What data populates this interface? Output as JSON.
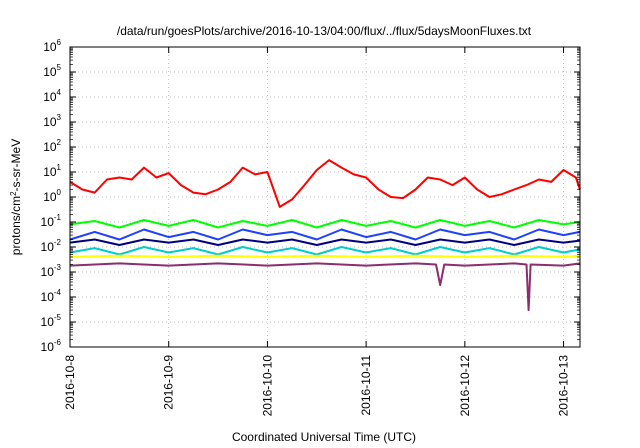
{
  "chart_data": {
    "type": "line",
    "title": "/data/run/goesPlots/archive/2016-10-13/04:00/flux/../flux/5daysMoonFluxes.txt",
    "xlabel": "Coordinated Universal Time (UTC)",
    "ylabel": {
      "base": "protons/cm",
      "sup": "2",
      "rest": "-s-sr-MeV"
    },
    "x_scale": "time",
    "y_scale": "log",
    "xlim": [
      "2016-10-08T00:00",
      "2016-10-13T04:00"
    ],
    "ylim": [
      1e-06,
      1000000.0
    ],
    "grid": true,
    "legend": "none",
    "x_ticks": [
      "2016-10-8",
      "2016-10-9",
      "2016-10-10",
      "2016-10-11",
      "2016-10-12",
      "2016-10-13"
    ],
    "y_ticks": [
      {
        "base": "10",
        "exp": "-6"
      },
      {
        "base": "10",
        "exp": "-5"
      },
      {
        "base": "10",
        "exp": "-4"
      },
      {
        "base": "10",
        "exp": "-3"
      },
      {
        "base": "10",
        "exp": "-2"
      },
      {
        "base": "10",
        "exp": "-1"
      },
      {
        "base": "10",
        "exp": "0"
      },
      {
        "base": "10",
        "exp": "1"
      },
      {
        "base": "10",
        "exp": "2"
      },
      {
        "base": "10",
        "exp": "3"
      },
      {
        "base": "10",
        "exp": "4"
      },
      {
        "base": "10",
        "exp": "5"
      },
      {
        "base": "10",
        "exp": "6"
      }
    ],
    "series": [
      {
        "color": "#ff0000",
        "x": [
          "2016-10-08T00:00",
          "2016-10-08T03:00",
          "2016-10-08T06:00",
          "2016-10-08T09:00",
          "2016-10-08T12:00",
          "2016-10-08T15:00",
          "2016-10-08T18:00",
          "2016-10-08T21:00",
          "2016-10-09T00:00",
          "2016-10-09T03:00",
          "2016-10-09T06:00",
          "2016-10-09T09:00",
          "2016-10-09T12:00",
          "2016-10-09T15:00",
          "2016-10-09T18:00",
          "2016-10-09T21:00",
          "2016-10-10T00:00",
          "2016-10-10T03:00",
          "2016-10-10T06:00",
          "2016-10-10T09:00",
          "2016-10-10T12:00",
          "2016-10-10T15:00",
          "2016-10-10T18:00",
          "2016-10-10T21:00",
          "2016-10-11T00:00",
          "2016-10-11T03:00",
          "2016-10-11T06:00",
          "2016-10-11T09:00",
          "2016-10-11T12:00",
          "2016-10-11T15:00",
          "2016-10-11T18:00",
          "2016-10-11T21:00",
          "2016-10-12T00:00",
          "2016-10-12T03:00",
          "2016-10-12T06:00",
          "2016-10-12T09:00",
          "2016-10-12T12:00",
          "2016-10-12T15:00",
          "2016-10-12T18:00",
          "2016-10-12T21:00",
          "2016-10-13T00:00",
          "2016-10-13T03:00",
          "2016-10-13T04:00"
        ],
        "y": [
          4,
          2,
          1.5,
          5,
          6,
          5,
          15,
          6,
          9,
          3,
          1.5,
          1.3,
          2,
          4,
          15,
          8,
          10,
          0.4,
          0.8,
          3,
          12,
          30,
          15,
          8,
          6,
          2,
          1,
          0.9,
          2,
          6,
          5,
          3,
          6,
          2,
          1,
          1.3,
          2,
          3,
          5,
          4,
          12,
          6,
          2
        ]
      },
      {
        "color": "#00ff00",
        "x": [
          "2016-10-08T00:00",
          "2016-10-08T06:00",
          "2016-10-08T12:00",
          "2016-10-08T18:00",
          "2016-10-09T00:00",
          "2016-10-09T06:00",
          "2016-10-09T12:00",
          "2016-10-09T18:00",
          "2016-10-10T00:00",
          "2016-10-10T06:00",
          "2016-10-10T12:00",
          "2016-10-10T18:00",
          "2016-10-11T00:00",
          "2016-10-11T06:00",
          "2016-10-11T12:00",
          "2016-10-11T18:00",
          "2016-10-12T00:00",
          "2016-10-12T06:00",
          "2016-10-12T12:00",
          "2016-10-12T18:00",
          "2016-10-13T00:00",
          "2016-10-13T04:00"
        ],
        "y": [
          0.08,
          0.11,
          0.06,
          0.12,
          0.07,
          0.12,
          0.06,
          0.11,
          0.07,
          0.12,
          0.06,
          0.12,
          0.07,
          0.11,
          0.06,
          0.12,
          0.07,
          0.11,
          0.06,
          0.12,
          0.08,
          0.1
        ]
      },
      {
        "color": "#00cccc",
        "x": [
          "2016-10-08T00:00",
          "2016-10-08T06:00",
          "2016-10-08T12:00",
          "2016-10-08T18:00",
          "2016-10-09T00:00",
          "2016-10-09T06:00",
          "2016-10-09T12:00",
          "2016-10-09T18:00",
          "2016-10-10T00:00",
          "2016-10-10T06:00",
          "2016-10-10T12:00",
          "2016-10-10T18:00",
          "2016-10-11T00:00",
          "2016-10-11T06:00",
          "2016-10-11T12:00",
          "2016-10-11T18:00",
          "2016-10-12T00:00",
          "2016-10-12T06:00",
          "2016-10-12T12:00",
          "2016-10-12T18:00",
          "2016-10-13T00:00",
          "2016-10-13T04:00"
        ],
        "y": [
          0.006,
          0.009,
          0.005,
          0.01,
          0.006,
          0.009,
          0.005,
          0.01,
          0.006,
          0.009,
          0.005,
          0.01,
          0.006,
          0.009,
          0.005,
          0.01,
          0.006,
          0.009,
          0.005,
          0.01,
          0.006,
          0.008
        ]
      },
      {
        "color": "#2040ff",
        "x": [
          "2016-10-08T00:00",
          "2016-10-08T06:00",
          "2016-10-08T12:00",
          "2016-10-08T18:00",
          "2016-10-09T00:00",
          "2016-10-09T06:00",
          "2016-10-09T12:00",
          "2016-10-09T18:00",
          "2016-10-10T00:00",
          "2016-10-10T06:00",
          "2016-10-10T12:00",
          "2016-10-10T18:00",
          "2016-10-11T00:00",
          "2016-10-11T06:00",
          "2016-10-11T12:00",
          "2016-10-11T18:00",
          "2016-10-12T00:00",
          "2016-10-12T06:00",
          "2016-10-12T12:00",
          "2016-10-12T18:00",
          "2016-10-13T00:00",
          "2016-10-13T04:00"
        ],
        "y": [
          0.02,
          0.04,
          0.02,
          0.05,
          0.025,
          0.04,
          0.02,
          0.05,
          0.03,
          0.04,
          0.02,
          0.05,
          0.025,
          0.04,
          0.02,
          0.05,
          0.03,
          0.04,
          0.02,
          0.05,
          0.03,
          0.04
        ]
      },
      {
        "color": "#000080",
        "x": [
          "2016-10-08T00:00",
          "2016-10-08T06:00",
          "2016-10-08T12:00",
          "2016-10-08T18:00",
          "2016-10-09T00:00",
          "2016-10-09T06:00",
          "2016-10-09T12:00",
          "2016-10-09T18:00",
          "2016-10-10T00:00",
          "2016-10-10T06:00",
          "2016-10-10T12:00",
          "2016-10-10T18:00",
          "2016-10-11T00:00",
          "2016-10-11T06:00",
          "2016-10-11T12:00",
          "2016-10-11T18:00",
          "2016-10-12T00:00",
          "2016-10-12T06:00",
          "2016-10-12T12:00",
          "2016-10-12T18:00",
          "2016-10-13T00:00",
          "2016-10-13T04:00"
        ],
        "y": [
          0.015,
          0.02,
          0.012,
          0.02,
          0.015,
          0.02,
          0.012,
          0.02,
          0.015,
          0.02,
          0.012,
          0.02,
          0.015,
          0.02,
          0.012,
          0.02,
          0.015,
          0.02,
          0.012,
          0.02,
          0.015,
          0.018
        ]
      },
      {
        "color": "#ffff00",
        "x": [
          "2016-10-08T00:00",
          "2016-10-08T12:00",
          "2016-10-09T00:00",
          "2016-10-09T12:00",
          "2016-10-10T00:00",
          "2016-10-10T12:00",
          "2016-10-11T00:00",
          "2016-10-11T12:00",
          "2016-10-12T00:00",
          "2016-10-12T12:00",
          "2016-10-13T00:00",
          "2016-10-13T04:00"
        ],
        "y": [
          0.004,
          0.0045,
          0.004,
          0.0045,
          0.004,
          0.0045,
          0.004,
          0.0045,
          0.004,
          0.0045,
          0.004,
          0.0045
        ]
      },
      {
        "color": "#8b2d6f",
        "x": [
          "2016-10-08T00:00",
          "2016-10-08T12:00",
          "2016-10-09T00:00",
          "2016-10-09T12:00",
          "2016-10-10T00:00",
          "2016-10-10T12:00",
          "2016-10-11T00:00",
          "2016-10-11T12:00",
          "2016-10-11T17:00",
          "2016-10-11T18:00",
          "2016-10-11T19:00",
          "2016-10-12T00:00",
          "2016-10-12T12:00",
          "2016-10-12T15:00",
          "2016-10-12T15:30",
          "2016-10-12T16:00",
          "2016-10-13T00:00",
          "2016-10-13T04:00"
        ],
        "y": [
          0.0018,
          0.0022,
          0.0018,
          0.0022,
          0.0018,
          0.0022,
          0.0018,
          0.0022,
          0.002,
          0.0003,
          0.002,
          0.0018,
          0.0022,
          0.002,
          3e-05,
          0.002,
          0.0018,
          0.0022
        ]
      }
    ]
  }
}
